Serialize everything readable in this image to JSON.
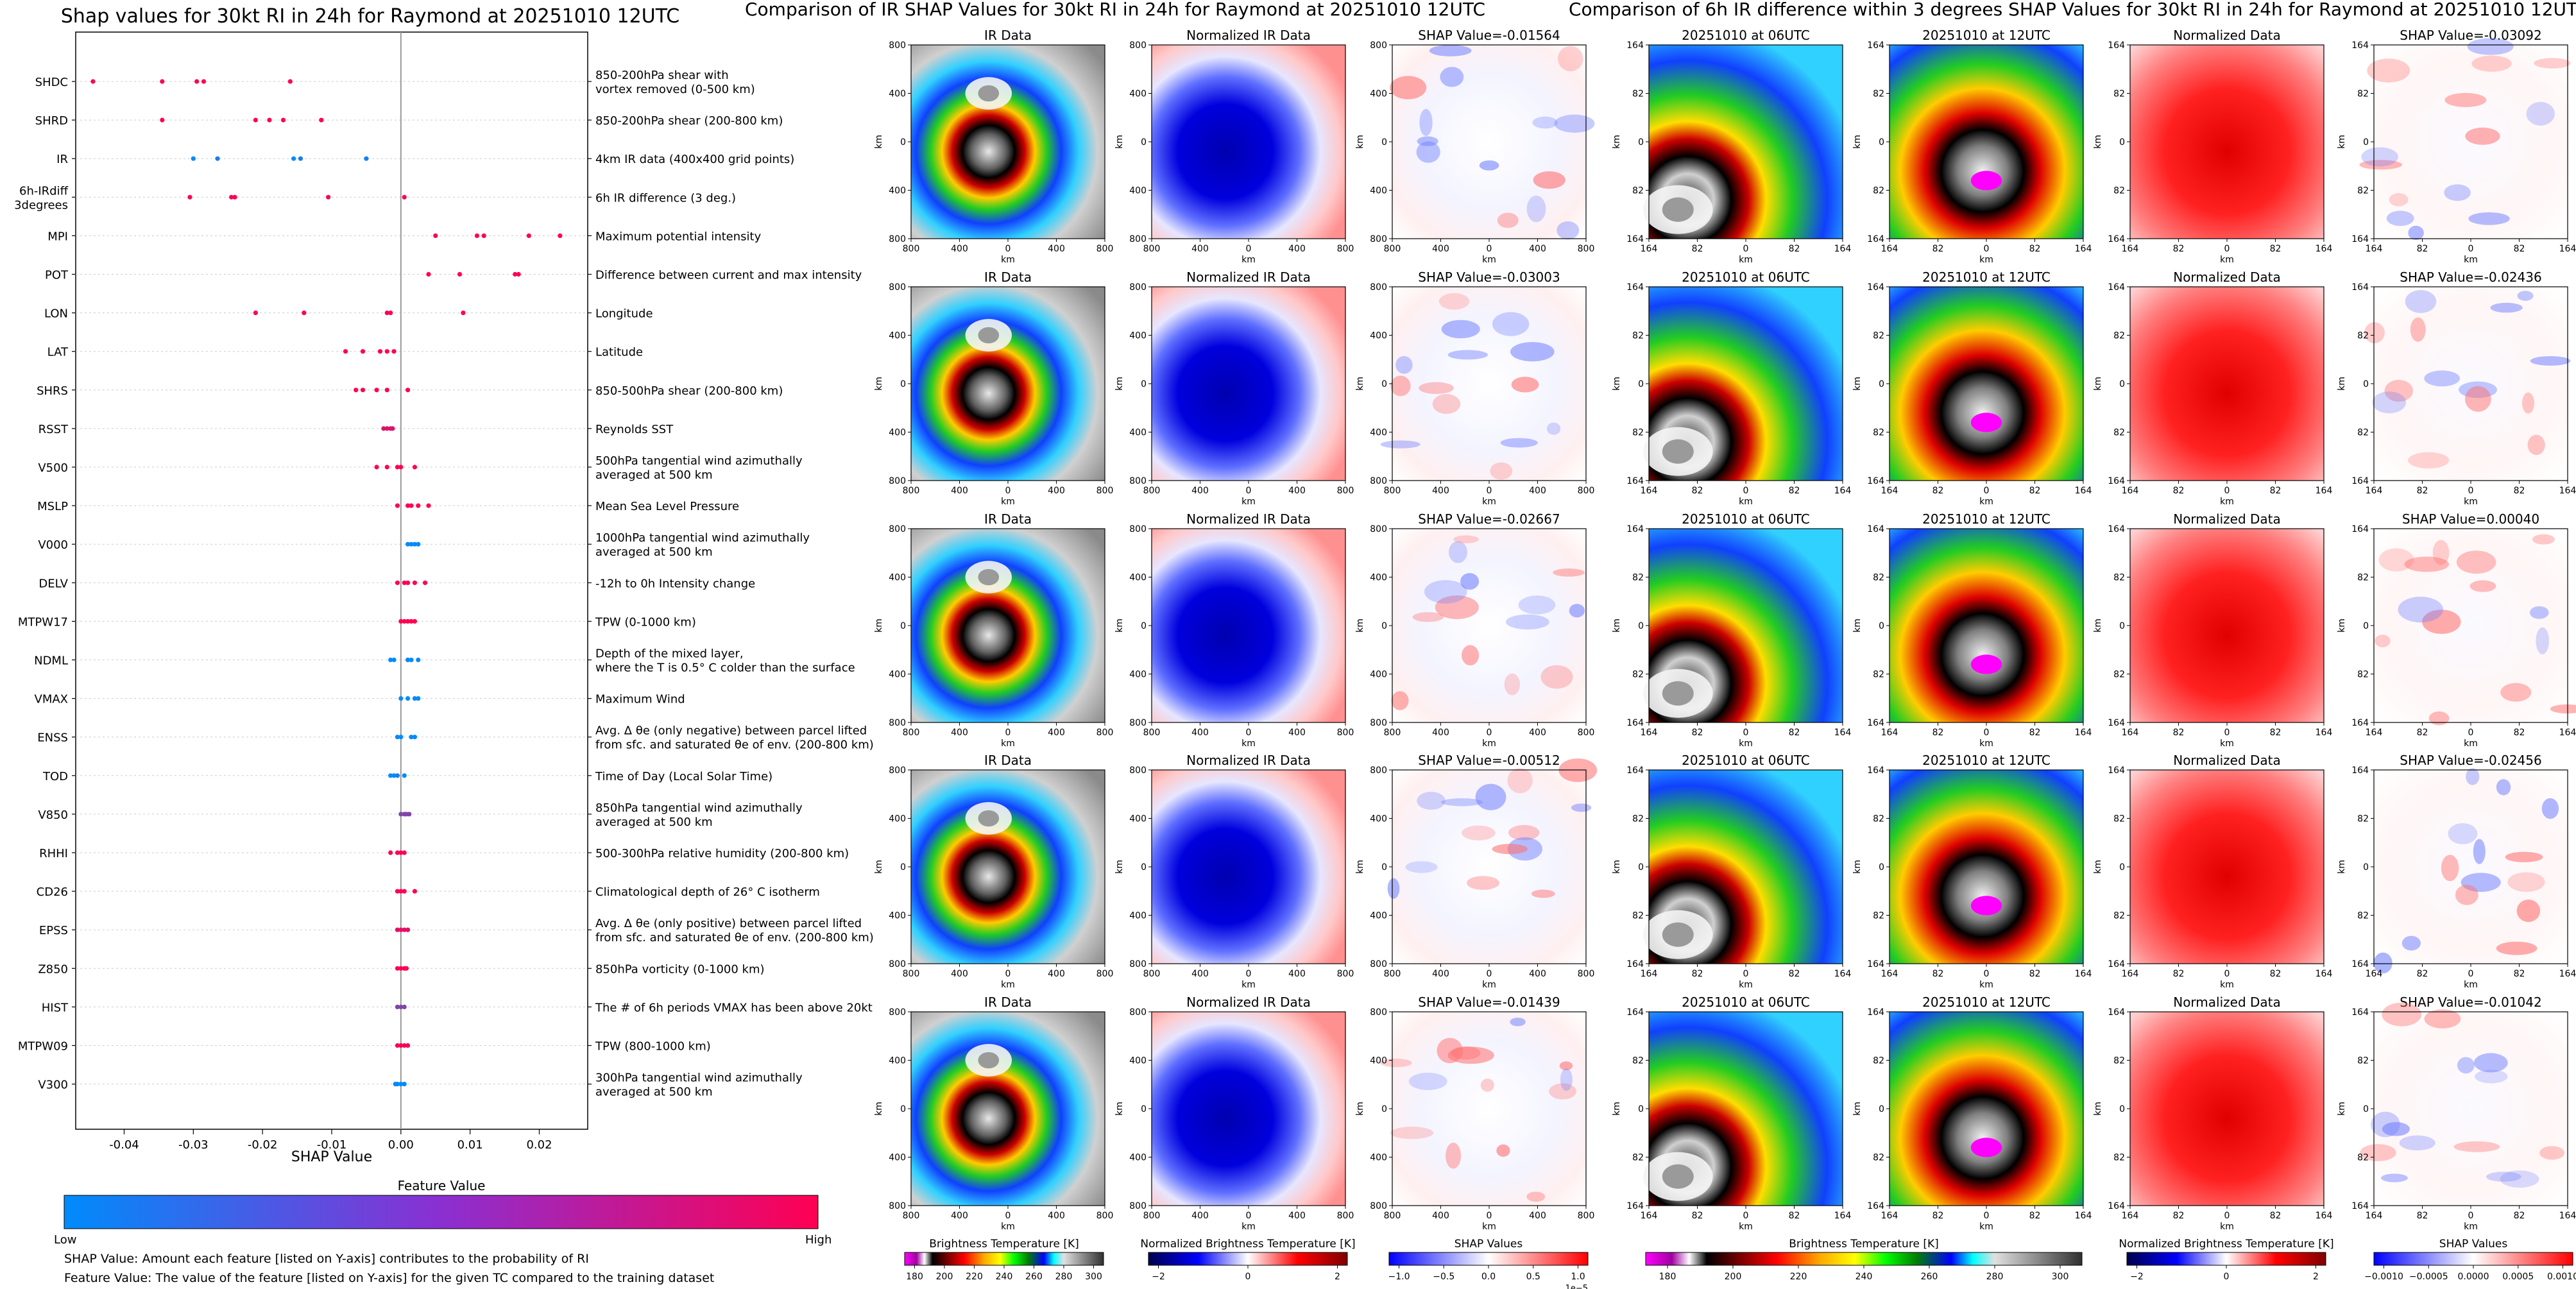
{
  "chart_data": [
    {
      "type": "scatter",
      "title": "Shap values for 30kt RI in 24h for Raymond at 20251010 12UTC",
      "xlabel": "SHAP Value",
      "xlim": [
        -0.047,
        0.027
      ],
      "xticks": [
        "-0.04",
        "-0.03",
        "-0.02",
        "-0.01",
        "0.00",
        "0.01",
        "0.02"
      ],
      "xtick_values": [
        -0.04,
        -0.03,
        -0.02,
        -0.01,
        0.0,
        0.01,
        0.02
      ],
      "features": [
        {
          "name": "SHDC",
          "desc": [
            "850-200hPa shear with",
            "vortex removed (0-500 km)"
          ],
          "points": [
            [
              -0.0445,
              1
            ],
            [
              -0.0345,
              1
            ],
            [
              -0.0295,
              1
            ],
            [
              -0.0285,
              1
            ],
            [
              -0.016,
              1
            ]
          ]
        },
        {
          "name": "SHRD",
          "desc": [
            "850-200hPa shear (200-800 km)"
          ],
          "points": [
            [
              -0.0345,
              1
            ],
            [
              -0.021,
              1
            ],
            [
              -0.019,
              1
            ],
            [
              -0.017,
              1
            ],
            [
              -0.0115,
              1
            ]
          ]
        },
        {
          "name": "IR",
          "desc": [
            "4km IR data (400x400 grid points)"
          ],
          "points": [
            [
              -0.03,
              0
            ],
            [
              -0.0265,
              0.1
            ],
            [
              -0.0155,
              0
            ],
            [
              -0.0145,
              0.1
            ],
            [
              -0.005,
              0.05
            ]
          ]
        },
        {
          "name": "6h-IRdiff\n3degrees",
          "desc": [
            "6h IR difference (3 deg.)"
          ],
          "points": [
            [
              -0.0305,
              1
            ],
            [
              -0.0245,
              1
            ],
            [
              -0.024,
              1
            ],
            [
              -0.0105,
              1
            ],
            [
              0.0005,
              1
            ]
          ]
        },
        {
          "name": "MPI",
          "desc": [
            "Maximum potential intensity"
          ],
          "points": [
            [
              0.005,
              1
            ],
            [
              0.011,
              1
            ],
            [
              0.012,
              1
            ],
            [
              0.0185,
              1
            ],
            [
              0.023,
              1
            ]
          ]
        },
        {
          "name": "POT",
          "desc": [
            "Difference between current and max intensity"
          ],
          "points": [
            [
              0.004,
              1
            ],
            [
              0.0085,
              1
            ],
            [
              0.0165,
              1
            ],
            [
              0.017,
              1
            ]
          ]
        },
        {
          "name": "LON",
          "desc": [
            "Longitude"
          ],
          "points": [
            [
              -0.021,
              1
            ],
            [
              -0.014,
              1
            ],
            [
              -0.002,
              1
            ],
            [
              -0.0015,
              1
            ],
            [
              0.009,
              1
            ]
          ]
        },
        {
          "name": "LAT",
          "desc": [
            "Latitude"
          ],
          "points": [
            [
              -0.008,
              1
            ],
            [
              -0.0055,
              1
            ],
            [
              -0.003,
              1
            ],
            [
              -0.002,
              1
            ],
            [
              -0.001,
              1
            ]
          ]
        },
        {
          "name": "SHRS",
          "desc": [
            "850-500hPa shear (200-800 km)"
          ],
          "points": [
            [
              -0.0065,
              1
            ],
            [
              -0.0055,
              1
            ],
            [
              -0.0035,
              1
            ],
            [
              -0.002,
              1
            ],
            [
              0.001,
              1
            ]
          ]
        },
        {
          "name": "RSST",
          "desc": [
            "Reynolds SST"
          ],
          "points": [
            [
              -0.0025,
              0.85
            ],
            [
              -0.002,
              0.85
            ],
            [
              -0.0015,
              0.85
            ],
            [
              -0.0012,
              0.85
            ]
          ]
        },
        {
          "name": "V500",
          "desc": [
            "500hPa tangential wind azimuthally",
            "averaged at 500 km"
          ],
          "points": [
            [
              -0.0035,
              1
            ],
            [
              -0.002,
              1
            ],
            [
              -0.0005,
              1
            ],
            [
              0.0,
              1
            ],
            [
              0.002,
              1
            ]
          ]
        },
        {
          "name": "MSLP",
          "desc": [
            "Mean Sea Level Pressure"
          ],
          "points": [
            [
              -0.0005,
              1
            ],
            [
              0.001,
              1
            ],
            [
              0.0015,
              1
            ],
            [
              0.0025,
              1
            ],
            [
              0.004,
              1
            ]
          ]
        },
        {
          "name": "V000",
          "desc": [
            "1000hPa tangential wind azimuthally",
            "averaged at 500 km"
          ],
          "points": [
            [
              0.001,
              0
            ],
            [
              0.0015,
              0
            ],
            [
              0.002,
              0
            ],
            [
              0.0025,
              0
            ]
          ]
        },
        {
          "name": "DELV",
          "desc": [
            "-12h to 0h Intensity change"
          ],
          "points": [
            [
              -0.0005,
              1
            ],
            [
              0.0005,
              1
            ],
            [
              0.001,
              1
            ],
            [
              0.002,
              1
            ],
            [
              0.0035,
              1
            ]
          ]
        },
        {
          "name": "MTPW17",
          "desc": [
            "TPW (0-1000 km)"
          ],
          "points": [
            [
              0.0,
              1
            ],
            [
              0.0005,
              1
            ],
            [
              0.001,
              1
            ],
            [
              0.0015,
              1
            ],
            [
              0.002,
              1
            ]
          ]
        },
        {
          "name": "NDML",
          "desc": [
            "Depth of the mixed layer,",
            "where the T is 0.5° C colder than the surface"
          ],
          "points": [
            [
              -0.0015,
              0
            ],
            [
              -0.001,
              0
            ],
            [
              0.001,
              0.05
            ],
            [
              0.0015,
              0
            ],
            [
              0.0025,
              0
            ]
          ]
        },
        {
          "name": "VMAX",
          "desc": [
            "Maximum Wind"
          ],
          "points": [
            [
              0.0,
              0
            ],
            [
              0.001,
              0
            ],
            [
              0.002,
              0
            ],
            [
              0.0025,
              0
            ]
          ]
        },
        {
          "name": "ENSS",
          "desc": [
            "Avg. Δ θe (only negative) between parcel lifted",
            "from sfc. and saturated θe of env. (200-800 km)"
          ],
          "points": [
            [
              -0.0005,
              0
            ],
            [
              0.0,
              0
            ],
            [
              0.0015,
              0
            ],
            [
              0.002,
              0
            ]
          ]
        },
        {
          "name": "TOD",
          "desc": [
            "Time of Day (Local Solar Time)"
          ],
          "points": [
            [
              -0.0015,
              0
            ],
            [
              -0.001,
              0
            ],
            [
              -0.0005,
              0.1
            ],
            [
              0.0005,
              0
            ]
          ]
        },
        {
          "name": "V850",
          "desc": [
            "850hPa tangential wind azimuthally",
            "averaged at 500 km"
          ],
          "points": [
            [
              0.0,
              0.5
            ],
            [
              0.0005,
              0.5
            ],
            [
              0.0008,
              0.5
            ],
            [
              0.0012,
              0.5
            ]
          ]
        },
        {
          "name": "RHHI",
          "desc": [
            "500-300hPa relative humidity (200-800 km)"
          ],
          "points": [
            [
              -0.0015,
              1
            ],
            [
              -0.0005,
              1
            ],
            [
              0.0,
              1
            ],
            [
              0.0005,
              1
            ]
          ]
        },
        {
          "name": "CD26",
          "desc": [
            "Climatological depth of 26° C isotherm"
          ],
          "points": [
            [
              -0.0005,
              1
            ],
            [
              0.0,
              1
            ],
            [
              0.0005,
              1
            ],
            [
              0.002,
              1
            ]
          ]
        },
        {
          "name": "EPSS",
          "desc": [
            "Avg. Δ θe (only positive) between parcel lifted",
            "from sfc. and saturated θe of env. (200-800 km)"
          ],
          "points": [
            [
              -0.0005,
              0.9
            ],
            [
              0.0,
              0.9
            ],
            [
              0.0005,
              0.9
            ],
            [
              0.001,
              0.9
            ]
          ]
        },
        {
          "name": "Z850",
          "desc": [
            "850hPa vorticity (0-1000 km)"
          ],
          "points": [
            [
              -0.0005,
              1
            ],
            [
              0.0,
              1
            ],
            [
              0.0005,
              1
            ],
            [
              0.0008,
              1
            ]
          ]
        },
        {
          "name": "HIST",
          "desc": [
            "The # of 6h periods VMAX has been above 20kt"
          ],
          "points": [
            [
              -0.0005,
              0.5
            ],
            [
              0.0,
              0.5
            ],
            [
              0.0005,
              0.5
            ]
          ]
        },
        {
          "name": "MTPW09",
          "desc": [
            "TPW (800-1000 km)"
          ],
          "points": [
            [
              -0.0005,
              1
            ],
            [
              0.0,
              1
            ],
            [
              0.0005,
              1
            ],
            [
              0.001,
              1
            ]
          ]
        },
        {
          "name": "V300",
          "desc": [
            "300hPa tangential wind azimuthally",
            "averaged at 500 km"
          ],
          "points": [
            [
              -0.0008,
              0
            ],
            [
              -0.0005,
              0
            ],
            [
              0.0,
              0
            ],
            [
              0.0005,
              0
            ]
          ]
        }
      ],
      "colorbar": {
        "title": "Feature Value",
        "low": "Low",
        "high": "High",
        "colors": [
          "#008bfb",
          "#ff0052"
        ]
      },
      "notes": [
        "SHAP Value: Amount each feature [listed on Y-axis] contributes to the probability of RI",
        "Feature Value: The value of the feature [listed on Y-axis] for the given TC compared to the training dataset"
      ]
    },
    {
      "type": "heatmap",
      "title": "Comparison of IR SHAP Values for 30kt RI in 24h for Raymond at 20251010 12UTC",
      "panel_titles": [
        "IR Data",
        "Normalized IR Data"
      ],
      "shap_titles": [
        "SHAP Value=-0.01564",
        "SHAP Value=-0.03003",
        "SHAP Value=-0.02667",
        "SHAP Value=-0.00512",
        "SHAP Value=-0.01439"
      ],
      "yticks": [
        "800",
        "400",
        "0",
        "400",
        "800"
      ],
      "xticks": [
        "800",
        "400",
        "0",
        "400",
        "800"
      ],
      "axis_unit": "km",
      "colorbars": [
        {
          "label": "Brightness Temperature [K]",
          "ticks": [
            "180",
            "200",
            "220",
            "240",
            "260",
            "280",
            "300"
          ]
        },
        {
          "label": "Normalized Brightness Temperature [K]",
          "ticks": [
            "−2",
            "0",
            "2"
          ]
        },
        {
          "label": "SHAP Values",
          "ticks": [
            "−1.0",
            "−0.5",
            "0.0",
            "0.5",
            "1.0"
          ],
          "offset": "1e−5"
        }
      ]
    },
    {
      "type": "heatmap",
      "title": "Comparison of 6h IR difference within 3 degrees SHAP Values for 30kt RI in 24h for Raymond at 20251010 12UTC",
      "panel_titles": [
        "20251010 at 06UTC",
        "20251010 at 12UTC",
        "Normalized Data"
      ],
      "shap_titles": [
        "SHAP Value=-0.03092",
        "SHAP Value=-0.02436",
        "SHAP Value=0.00040",
        "SHAP Value=-0.02456",
        "SHAP Value=-0.01042"
      ],
      "yticks": [
        "164",
        "82",
        "0",
        "82",
        "164"
      ],
      "xticks": [
        "164",
        "82",
        "0",
        "82",
        "164"
      ],
      "axis_unit": "km",
      "colorbars": [
        {
          "label": "Brightness Temperature [K]",
          "ticks": [
            "180",
            "200",
            "220",
            "240",
            "260",
            "280",
            "300"
          ]
        },
        {
          "label": "Normalized Brightness Temperature [K]",
          "ticks": [
            "−2",
            "0",
            "2"
          ]
        },
        {
          "label": "SHAP Values",
          "ticks": [
            "−0.0010",
            "−0.0005",
            "0.0000",
            "0.0005",
            "0.0010"
          ]
        }
      ]
    }
  ]
}
